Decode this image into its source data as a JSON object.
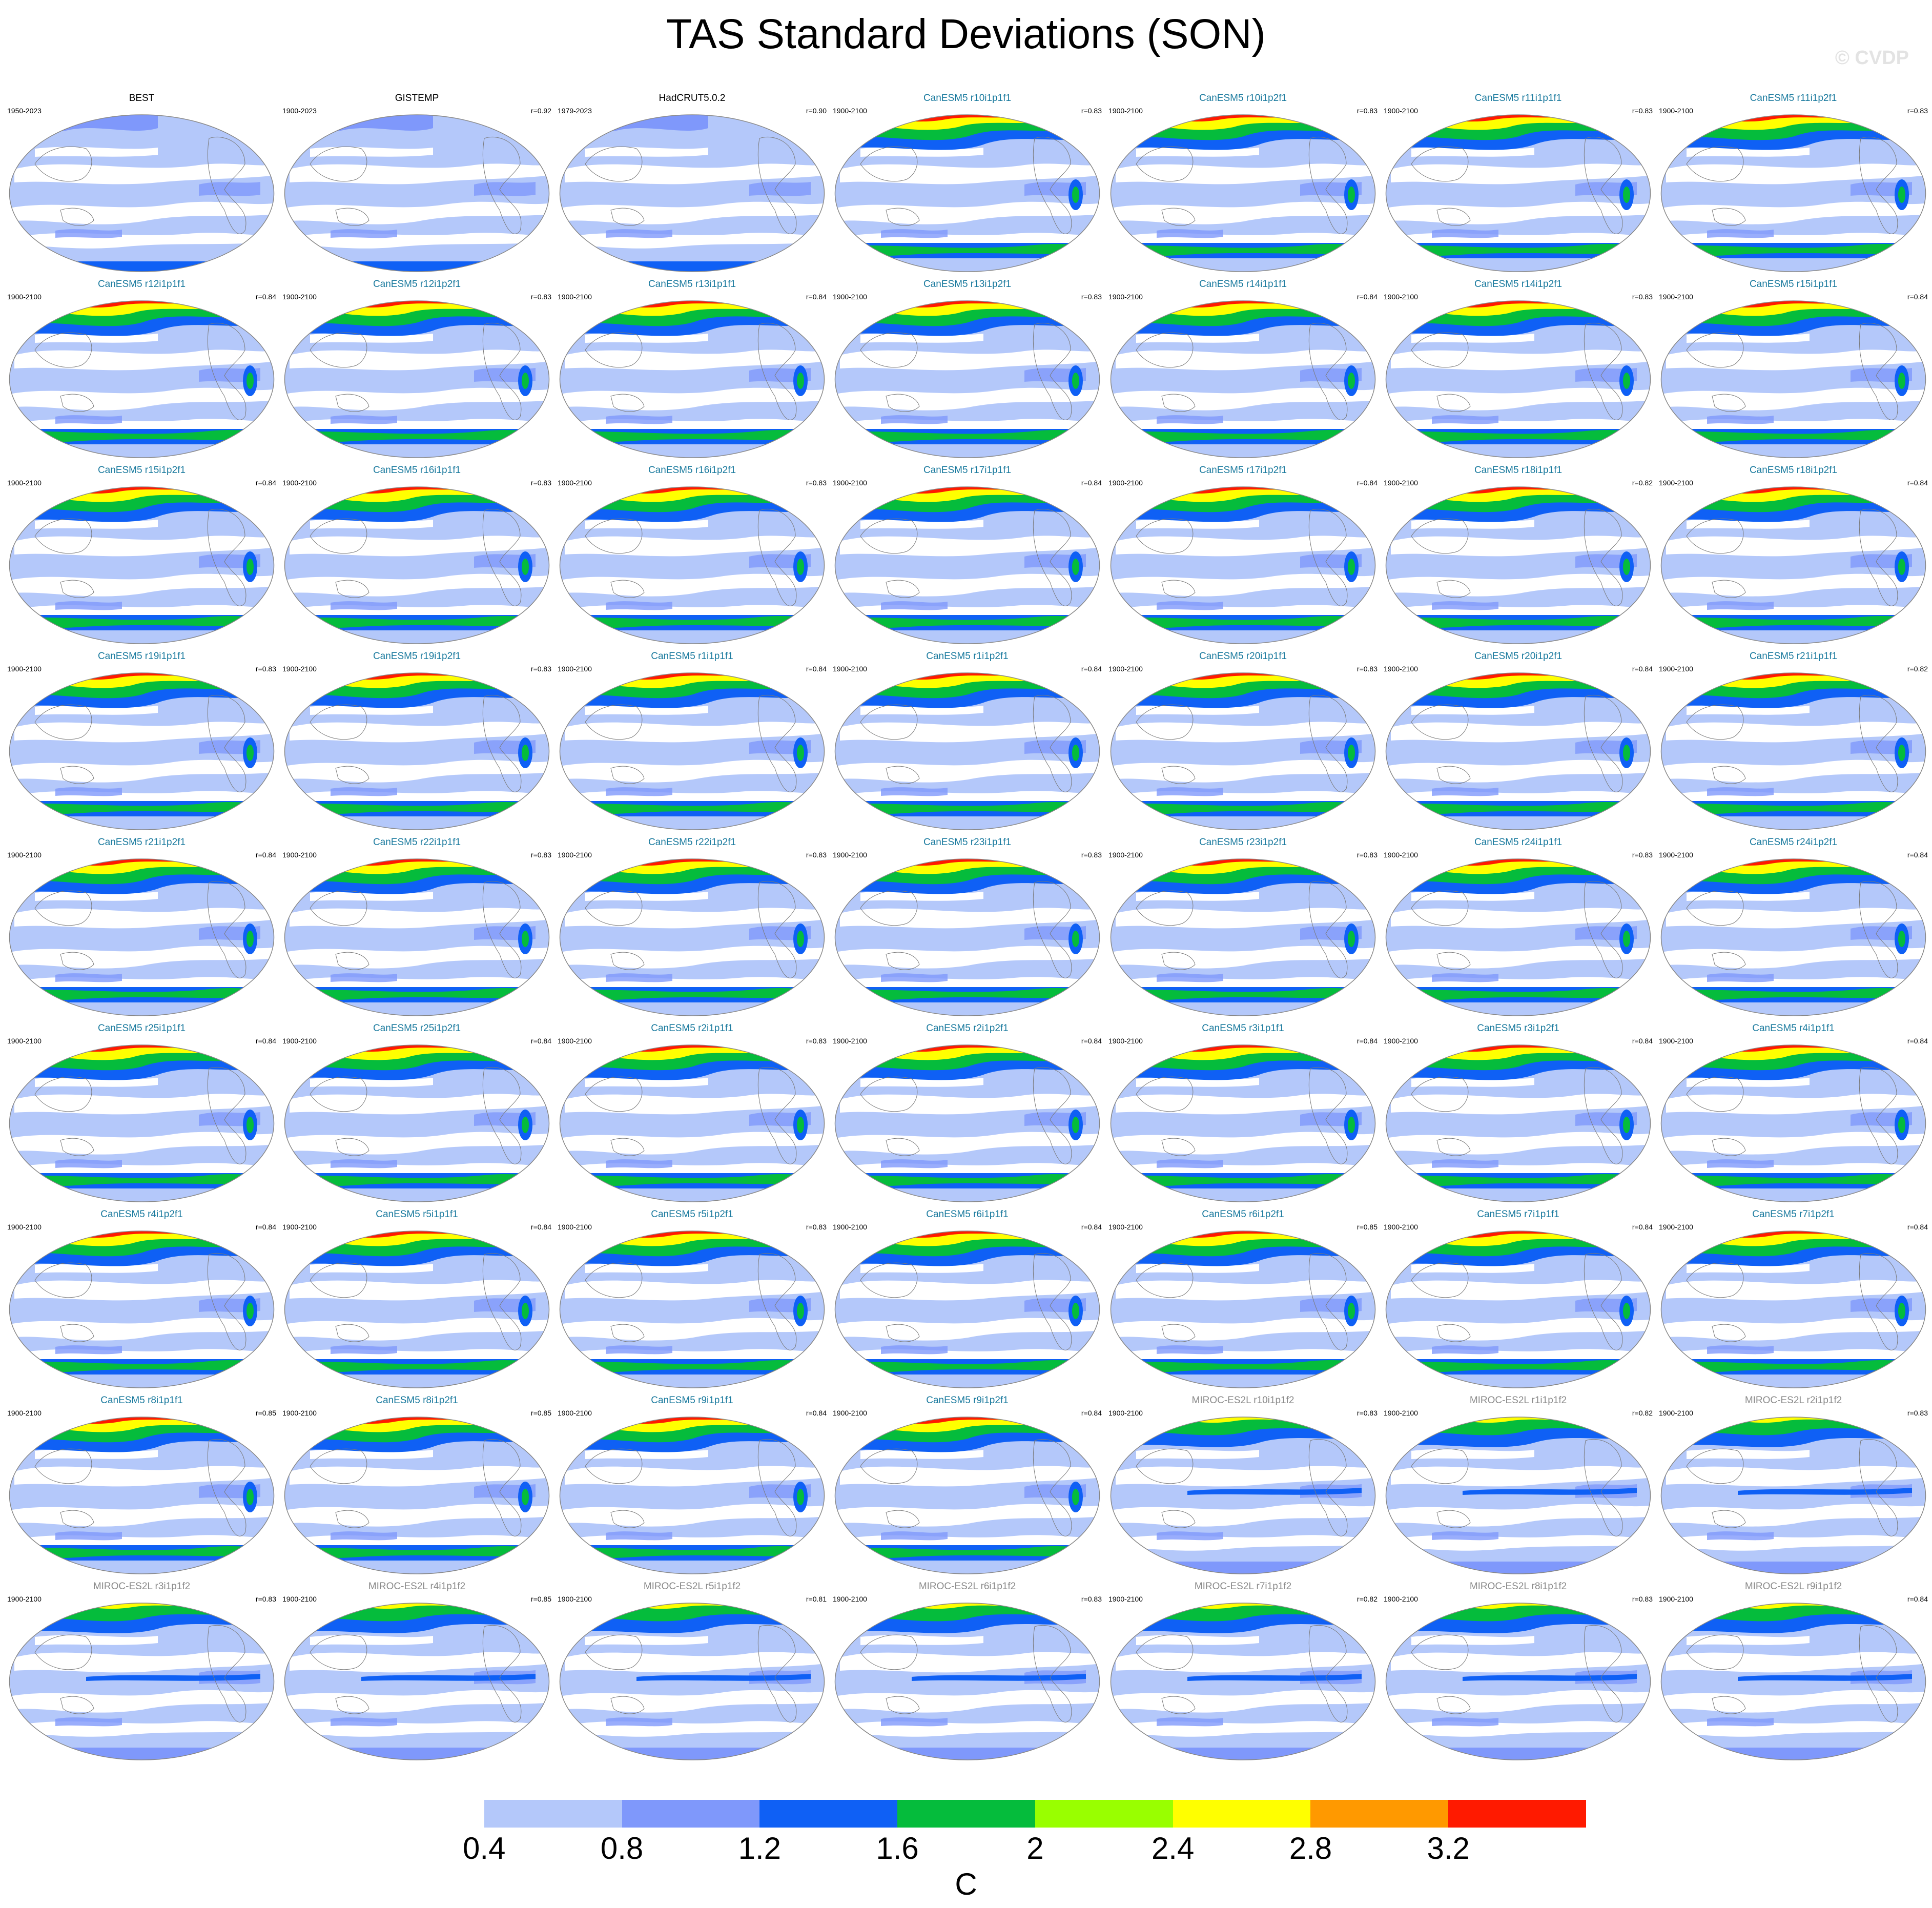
{
  "title": "TAS Standard Deviations (SON)",
  "copyright": "© CVDP",
  "colors": {
    "observation_title": "#000000",
    "canesm5_title": "#1a7a9e",
    "miroc_title": "#8a8a8a",
    "land_outline": "#7a7a7a",
    "map_border": "#888888"
  },
  "panels": [
    {
      "title": "BEST",
      "period": "1950-2023",
      "corr": "",
      "group": "obs"
    },
    {
      "title": "GISTEMP",
      "period": "1900-2023",
      "corr": "r=0.92",
      "group": "obs"
    },
    {
      "title": "HadCRUT5.0.2",
      "period": "1979-2023",
      "corr": "r=0.90",
      "group": "obs"
    },
    {
      "title": "CanESM5 r10i1p1f1",
      "period": "1900-2100",
      "corr": "r=0.83",
      "group": "canesm5"
    },
    {
      "title": "CanESM5 r10i1p2f1",
      "period": "1900-2100",
      "corr": "r=0.83",
      "group": "canesm5"
    },
    {
      "title": "CanESM5 r11i1p1f1",
      "period": "1900-2100",
      "corr": "r=0.83",
      "group": "canesm5"
    },
    {
      "title": "CanESM5 r11i1p2f1",
      "period": "1900-2100",
      "corr": "r=0.83",
      "group": "canesm5"
    },
    {
      "title": "CanESM5 r12i1p1f1",
      "period": "1900-2100",
      "corr": "r=0.84",
      "group": "canesm5"
    },
    {
      "title": "CanESM5 r12i1p2f1",
      "period": "1900-2100",
      "corr": "r=0.83",
      "group": "canesm5"
    },
    {
      "title": "CanESM5 r13i1p1f1",
      "period": "1900-2100",
      "corr": "r=0.84",
      "group": "canesm5"
    },
    {
      "title": "CanESM5 r13i1p2f1",
      "period": "1900-2100",
      "corr": "r=0.83",
      "group": "canesm5"
    },
    {
      "title": "CanESM5 r14i1p1f1",
      "period": "1900-2100",
      "corr": "r=0.84",
      "group": "canesm5"
    },
    {
      "title": "CanESM5 r14i1p2f1",
      "period": "1900-2100",
      "corr": "r=0.83",
      "group": "canesm5"
    },
    {
      "title": "CanESM5 r15i1p1f1",
      "period": "1900-2100",
      "corr": "r=0.84",
      "group": "canesm5"
    },
    {
      "title": "CanESM5 r15i1p2f1",
      "period": "1900-2100",
      "corr": "r=0.84",
      "group": "canesm5"
    },
    {
      "title": "CanESM5 r16i1p1f1",
      "period": "1900-2100",
      "corr": "r=0.83",
      "group": "canesm5"
    },
    {
      "title": "CanESM5 r16i1p2f1",
      "period": "1900-2100",
      "corr": "r=0.83",
      "group": "canesm5"
    },
    {
      "title": "CanESM5 r17i1p1f1",
      "period": "1900-2100",
      "corr": "r=0.84",
      "group": "canesm5"
    },
    {
      "title": "CanESM5 r17i1p2f1",
      "period": "1900-2100",
      "corr": "r=0.84",
      "group": "canesm5"
    },
    {
      "title": "CanESM5 r18i1p1f1",
      "period": "1900-2100",
      "corr": "r=0.82",
      "group": "canesm5"
    },
    {
      "title": "CanESM5 r18i1p2f1",
      "period": "1900-2100",
      "corr": "r=0.84",
      "group": "canesm5"
    },
    {
      "title": "CanESM5 r19i1p1f1",
      "period": "1900-2100",
      "corr": "r=0.83",
      "group": "canesm5"
    },
    {
      "title": "CanESM5 r19i1p2f1",
      "period": "1900-2100",
      "corr": "r=0.83",
      "group": "canesm5"
    },
    {
      "title": "CanESM5 r1i1p1f1",
      "period": "1900-2100",
      "corr": "r=0.84",
      "group": "canesm5"
    },
    {
      "title": "CanESM5 r1i1p2f1",
      "period": "1900-2100",
      "corr": "r=0.84",
      "group": "canesm5"
    },
    {
      "title": "CanESM5 r20i1p1f1",
      "period": "1900-2100",
      "corr": "r=0.83",
      "group": "canesm5"
    },
    {
      "title": "CanESM5 r20i1p2f1",
      "period": "1900-2100",
      "corr": "r=0.84",
      "group": "canesm5"
    },
    {
      "title": "CanESM5 r21i1p1f1",
      "period": "1900-2100",
      "corr": "r=0.82",
      "group": "canesm5"
    },
    {
      "title": "CanESM5 r21i1p2f1",
      "period": "1900-2100",
      "corr": "r=0.84",
      "group": "canesm5"
    },
    {
      "title": "CanESM5 r22i1p1f1",
      "period": "1900-2100",
      "corr": "r=0.83",
      "group": "canesm5"
    },
    {
      "title": "CanESM5 r22i1p2f1",
      "period": "1900-2100",
      "corr": "r=0.83",
      "group": "canesm5"
    },
    {
      "title": "CanESM5 r23i1p1f1",
      "period": "1900-2100",
      "corr": "r=0.83",
      "group": "canesm5"
    },
    {
      "title": "CanESM5 r23i1p2f1",
      "period": "1900-2100",
      "corr": "r=0.83",
      "group": "canesm5"
    },
    {
      "title": "CanESM5 r24i1p1f1",
      "period": "1900-2100",
      "corr": "r=0.83",
      "group": "canesm5"
    },
    {
      "title": "CanESM5 r24i1p2f1",
      "period": "1900-2100",
      "corr": "r=0.84",
      "group": "canesm5"
    },
    {
      "title": "CanESM5 r25i1p1f1",
      "period": "1900-2100",
      "corr": "r=0.84",
      "group": "canesm5"
    },
    {
      "title": "CanESM5 r25i1p2f1",
      "period": "1900-2100",
      "corr": "r=0.84",
      "group": "canesm5"
    },
    {
      "title": "CanESM5 r2i1p1f1",
      "period": "1900-2100",
      "corr": "r=0.83",
      "group": "canesm5"
    },
    {
      "title": "CanESM5 r2i1p2f1",
      "period": "1900-2100",
      "corr": "r=0.84",
      "group": "canesm5"
    },
    {
      "title": "CanESM5 r3i1p1f1",
      "period": "1900-2100",
      "corr": "r=0.84",
      "group": "canesm5"
    },
    {
      "title": "CanESM5 r3i1p2f1",
      "period": "1900-2100",
      "corr": "r=0.84",
      "group": "canesm5"
    },
    {
      "title": "CanESM5 r4i1p1f1",
      "period": "1900-2100",
      "corr": "r=0.84",
      "group": "canesm5"
    },
    {
      "title": "CanESM5 r4i1p2f1",
      "period": "1900-2100",
      "corr": "r=0.84",
      "group": "canesm5"
    },
    {
      "title": "CanESM5 r5i1p1f1",
      "period": "1900-2100",
      "corr": "r=0.84",
      "group": "canesm5"
    },
    {
      "title": "CanESM5 r5i1p2f1",
      "period": "1900-2100",
      "corr": "r=0.83",
      "group": "canesm5"
    },
    {
      "title": "CanESM5 r6i1p1f1",
      "period": "1900-2100",
      "corr": "r=0.84",
      "group": "canesm5"
    },
    {
      "title": "CanESM5 r6i1p2f1",
      "period": "1900-2100",
      "corr": "r=0.85",
      "group": "canesm5"
    },
    {
      "title": "CanESM5 r7i1p1f1",
      "period": "1900-2100",
      "corr": "r=0.84",
      "group": "canesm5"
    },
    {
      "title": "CanESM5 r7i1p2f1",
      "period": "1900-2100",
      "corr": "r=0.84",
      "group": "canesm5"
    },
    {
      "title": "CanESM5 r8i1p1f1",
      "period": "1900-2100",
      "corr": "r=0.85",
      "group": "canesm5"
    },
    {
      "title": "CanESM5 r8i1p2f1",
      "period": "1900-2100",
      "corr": "r=0.85",
      "group": "canesm5"
    },
    {
      "title": "CanESM5 r9i1p1f1",
      "period": "1900-2100",
      "corr": "r=0.84",
      "group": "canesm5"
    },
    {
      "title": "CanESM5 r9i1p2f1",
      "period": "1900-2100",
      "corr": "r=0.84",
      "group": "canesm5"
    },
    {
      "title": "MIROC-ES2L r10i1p1f2",
      "period": "1900-2100",
      "corr": "r=0.83",
      "group": "miroc"
    },
    {
      "title": "MIROC-ES2L r1i1p1f2",
      "period": "1900-2100",
      "corr": "r=0.82",
      "group": "miroc"
    },
    {
      "title": "MIROC-ES2L r2i1p1f2",
      "period": "1900-2100",
      "corr": "r=0.83",
      "group": "miroc"
    },
    {
      "title": "MIROC-ES2L r3i1p1f2",
      "period": "1900-2100",
      "corr": "r=0.83",
      "group": "miroc"
    },
    {
      "title": "MIROC-ES2L r4i1p1f2",
      "period": "1900-2100",
      "corr": "r=0.85",
      "group": "miroc"
    },
    {
      "title": "MIROC-ES2L r5i1p1f2",
      "period": "1900-2100",
      "corr": "r=0.81",
      "group": "miroc"
    },
    {
      "title": "MIROC-ES2L r6i1p1f2",
      "period": "1900-2100",
      "corr": "r=0.83",
      "group": "miroc"
    },
    {
      "title": "MIROC-ES2L r7i1p1f2",
      "period": "1900-2100",
      "corr": "r=0.82",
      "group": "miroc"
    },
    {
      "title": "MIROC-ES2L r8i1p1f2",
      "period": "1900-2100",
      "corr": "r=0.83",
      "group": "miroc"
    },
    {
      "title": "MIROC-ES2L r9i1p1f2",
      "period": "1900-2100",
      "corr": "r=0.84",
      "group": "miroc"
    }
  ],
  "colorbar": {
    "units": "C",
    "labels": [
      "0.4",
      "0.8",
      "1.2",
      "1.6",
      "2",
      "2.4",
      "2.8",
      "3.2"
    ],
    "fills": [
      "#ffffff",
      "#b4c8fa",
      "#7f98fb",
      "#0f60f5",
      "#05bc3c",
      "#99ff00",
      "#ffff00",
      "#ff9900",
      "#ff1a00"
    ]
  }
}
